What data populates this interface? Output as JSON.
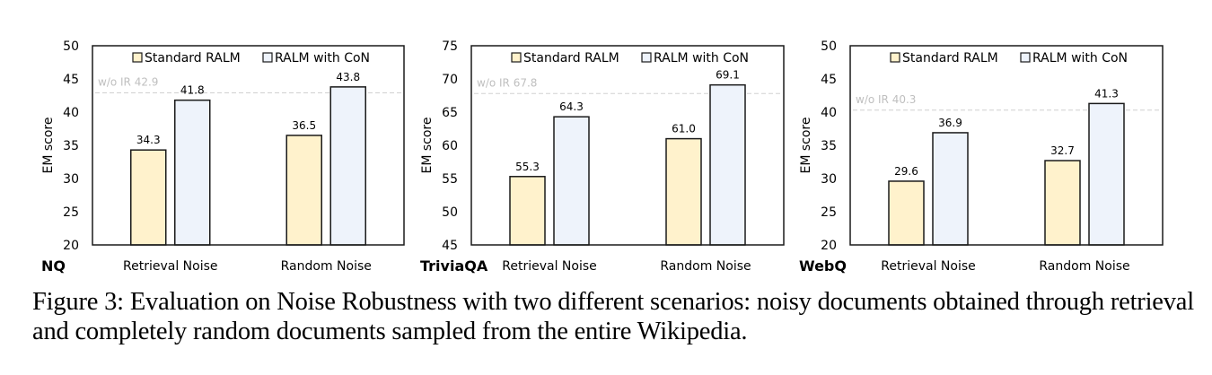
{
  "figure": {
    "caption": "Figure 3: Evaluation on Noise Robustness with two different scenarios: noisy documents obtained through retrieval and completely random documents sampled from the entire Wikipedia.",
    "colors": {
      "standard": "#FFF2CC",
      "con": "#EEF3FB",
      "border": "#1a1a1a",
      "baseline": "#d0d0d0",
      "baseline_text": "#bfbfbf"
    }
  },
  "chart_data": [
    {
      "type": "bar",
      "title": "NQ",
      "xlabel": "",
      "ylabel": "EM score",
      "categories": [
        "Retrieval Noise",
        "Random Noise"
      ],
      "series": [
        {
          "name": "Standard RALM",
          "values": [
            34.3,
            36.5
          ],
          "labels": [
            "34.3",
            "36.5"
          ]
        },
        {
          "name": "RALM with CoN",
          "values": [
            41.8,
            43.8
          ],
          "labels": [
            "41.8",
            "43.8"
          ]
        }
      ],
      "baseline": {
        "label": "w/o IR 42.9",
        "value": 42.9
      },
      "ylim": [
        20,
        50
      ],
      "yticks": [
        "20",
        "25",
        "30",
        "35",
        "40",
        "45",
        "50"
      ],
      "legend_position": "top-inside",
      "grid": false
    },
    {
      "type": "bar",
      "title": "TriviaQA",
      "xlabel": "",
      "ylabel": "EM score",
      "categories": [
        "Retrieval Noise",
        "Random Noise"
      ],
      "series": [
        {
          "name": "Standard RALM",
          "values": [
            55.3,
            61.0
          ],
          "labels": [
            "55.3",
            "61.0"
          ]
        },
        {
          "name": "RALM with CoN",
          "values": [
            64.3,
            69.1
          ],
          "labels": [
            "64.3",
            "69.1"
          ]
        }
      ],
      "baseline": {
        "label": "w/o IR 67.8",
        "value": 67.8
      },
      "ylim": [
        45,
        75
      ],
      "yticks": [
        "45",
        "50",
        "55",
        "60",
        "65",
        "70",
        "75"
      ],
      "legend_position": "top-inside",
      "grid": false
    },
    {
      "type": "bar",
      "title": "WebQ",
      "xlabel": "",
      "ylabel": "EM score",
      "categories": [
        "Retrieval Noise",
        "Random Noise"
      ],
      "series": [
        {
          "name": "Standard RALM",
          "values": [
            29.6,
            32.7
          ],
          "labels": [
            "29.6",
            "32.7"
          ]
        },
        {
          "name": "RALM with CoN",
          "values": [
            36.9,
            41.3
          ],
          "labels": [
            "36.9",
            "41.3"
          ]
        }
      ],
      "baseline": {
        "label": "w/o IR 40.3",
        "value": 40.3
      },
      "ylim": [
        20,
        50
      ],
      "yticks": [
        "20",
        "25",
        "30",
        "35",
        "40",
        "45",
        "50"
      ],
      "legend_position": "top-inside",
      "grid": false
    }
  ]
}
